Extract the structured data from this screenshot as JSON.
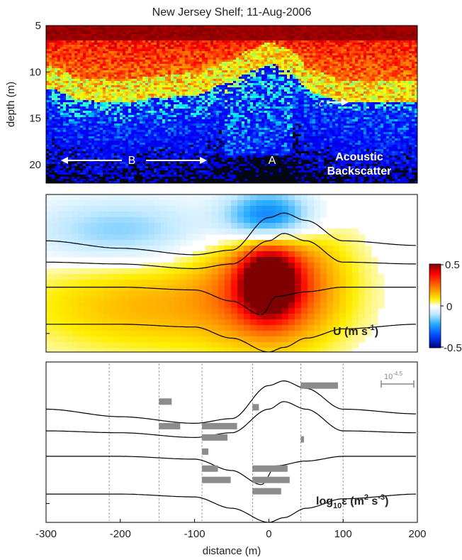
{
  "chart_data": [
    {
      "type": "heatmap",
      "title": "New Jersey Shelf; 11-Aug-2006",
      "ylabel": "depth (m)",
      "xlim": [
        -300,
        200
      ],
      "ylim": [
        5,
        22
      ],
      "y_inverted": true,
      "yticks": [
        "5",
        "10",
        "15",
        "20"
      ],
      "annotations": {
        "label": "Acoustic\nBackscatter",
        "label_line1": "Acoustic",
        "label_line2": "Backscatter",
        "A": "A",
        "B": "B",
        "c": "c"
      },
      "layers": {
        "surface_layer_bottom_depth_m": {
          "x": [
            -300,
            -250,
            -200,
            -150,
            -100,
            -60,
            -20,
            0,
            20,
            60,
            100,
            150,
            200
          ],
          "y": [
            10.5,
            11.8,
            12.0,
            11.5,
            11.2,
            10.0,
            8.5,
            7.8,
            8.5,
            11.0,
            12.0,
            12.0,
            12.0
          ]
        },
        "bright_wave_region_x_m": [
          -60,
          30
        ],
        "depth_of_scatter_bottom_m": 22
      },
      "colormap": "jet"
    },
    {
      "type": "heatmap",
      "label": "U (m s",
      "label_sup": "-1",
      "label_close": ")",
      "colorbar": {
        "min": -0.5,
        "max": 0.5,
        "ticks": [
          "0.5",
          "0",
          "-0.5"
        ]
      },
      "xlim": [
        -300,
        200
      ],
      "contours": [
        {
          "x": [
            -300,
            -200,
            -100,
            -50,
            0,
            20,
            50,
            100,
            200
          ],
          "y": [
            10.0,
            10.8,
            11.5,
            11.0,
            7.5,
            7.0,
            7.8,
            10.0,
            10.5
          ]
        },
        {
          "x": [
            -300,
            -200,
            -100,
            -50,
            0,
            20,
            50,
            100,
            200
          ],
          "y": [
            12.3,
            12.5,
            13.0,
            12.5,
            10.0,
            9.2,
            10.0,
            12.3,
            12.5
          ]
        },
        {
          "x": [
            -300,
            -200,
            -100,
            -50,
            -10,
            10,
            50,
            100,
            200
          ],
          "y": [
            15.0,
            15.0,
            15.3,
            16.5,
            18.0,
            16.0,
            15.5,
            15.0,
            15.0
          ]
        },
        {
          "x": [
            -300,
            -200,
            -100,
            -50,
            0,
            20,
            50,
            100,
            200
          ],
          "y": [
            19.0,
            19.0,
            19.3,
            20.5,
            22.0,
            21.5,
            20.5,
            19.5,
            19.0
          ]
        }
      ],
      "blobs": [
        {
          "x": 0,
          "y": 14.5,
          "value": 0.5,
          "rx": 35,
          "ry": 3.5
        },
        {
          "x": 10,
          "y": 14.5,
          "value": 0.3,
          "rx": 85,
          "ry": 6.5
        },
        {
          "x": -150,
          "y": 17.0,
          "value": 0.15,
          "rx": 180,
          "ry": 5.0
        },
        {
          "x": 0,
          "y": 7.5,
          "value": -0.35,
          "rx": 60,
          "ry": 3.0
        },
        {
          "x": -200,
          "y": 9.0,
          "value": -0.15,
          "rx": 120,
          "ry": 3.5
        }
      ]
    },
    {
      "type": "bar",
      "label": "log",
      "label_sub": "10",
      "label_var": "ε (m",
      "label_sup1": "2",
      "label_mid": " s",
      "label_sup2": "-3",
      "label_close": ")",
      "scale_label": "10",
      "scale_sup": "-4.5",
      "xlabel": "distance (m)",
      "xticks": [
        {
          "value": -300,
          "label": "-300"
        },
        {
          "value": -200,
          "label": "-200"
        },
        {
          "value": -100,
          "label": "-100"
        },
        {
          "value": 0,
          "label": "0"
        },
        {
          "value": 100,
          "label": "100"
        },
        {
          "value": 200,
          "label": "200"
        }
      ],
      "xlim": [
        -300,
        200
      ],
      "profile_x_m": [
        -215,
        -148,
        -90,
        -22,
        43,
        100
      ],
      "bars": [
        {
          "x0": -148,
          "depth": 9.2,
          "value": 0.12
        },
        {
          "x0": -148,
          "depth": 11.8,
          "value": 0.2
        },
        {
          "x0": -90,
          "depth": 11.8,
          "value": 0.33
        },
        {
          "x0": -90,
          "depth": 13.0,
          "value": 0.24
        },
        {
          "x0": -90,
          "depth": 14.5,
          "value": 0.06
        },
        {
          "x0": -90,
          "depth": 16.3,
          "value": 0.15
        },
        {
          "x0": -90,
          "depth": 17.5,
          "value": 0.27
        },
        {
          "x0": -22,
          "depth": 9.8,
          "value": 0.06
        },
        {
          "x0": -22,
          "depth": 16.3,
          "value": 0.33
        },
        {
          "x0": -22,
          "depth": 17.5,
          "value": 0.35
        },
        {
          "x0": -22,
          "depth": 18.7,
          "value": 0.27
        },
        {
          "x0": 43,
          "depth": 7.5,
          "value": 0.35
        },
        {
          "x0": 43,
          "depth": 13.2,
          "value": 0.03
        }
      ]
    }
  ]
}
